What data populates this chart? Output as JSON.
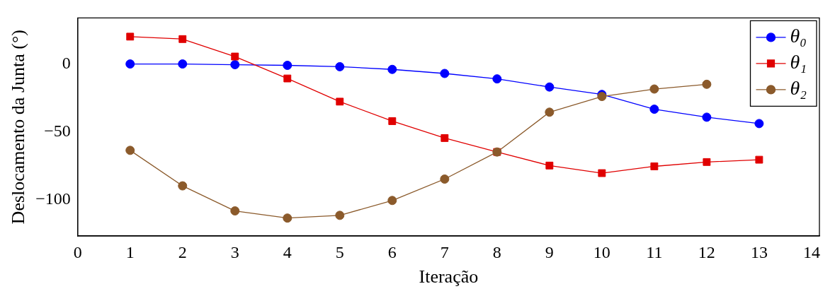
{
  "chart_data": {
    "type": "line",
    "xlabel": "Iteração",
    "ylabel": "Deslocamento da Junta (°)",
    "x": [
      1,
      2,
      3,
      4,
      5,
      6,
      7,
      8,
      9,
      10,
      11,
      12,
      13
    ],
    "series": [
      {
        "name": "θ₀",
        "color": "#0000ff",
        "marker": "circle",
        "values": [
          0,
          0,
          -0.5,
          -1,
          -2,
          -4,
          -7,
          -11,
          -17,
          -22.5,
          -33.4,
          -39.3,
          -44
        ]
      },
      {
        "name": "θ₁",
        "color": "#e00000",
        "marker": "square",
        "values": [
          20.2,
          18.4,
          5.5,
          -10.7,
          -27.8,
          -42.2,
          -54.7,
          -65,
          -75,
          -80.6,
          -75.6,
          -72.4,
          -70.7
        ]
      },
      {
        "name": "θ₂",
        "color": "#8b5a2b",
        "marker": "circle",
        "values": [
          -63.8,
          -90,
          -108.5,
          -113.8,
          -111.8,
          -100.8,
          -85,
          -65,
          -35.6,
          -24,
          -18.5,
          -15,
          null
        ]
      }
    ],
    "xlim": [
      0,
      14.15
    ],
    "xticks": [
      0,
      1,
      2,
      3,
      4,
      5,
      6,
      7,
      8,
      9,
      10,
      11,
      12,
      13,
      14
    ],
    "ylim": [
      -127,
      34
    ],
    "yticks": [
      -100,
      -50,
      0
    ],
    "grid": false,
    "legend": "top right",
    "line_style": "solid"
  }
}
